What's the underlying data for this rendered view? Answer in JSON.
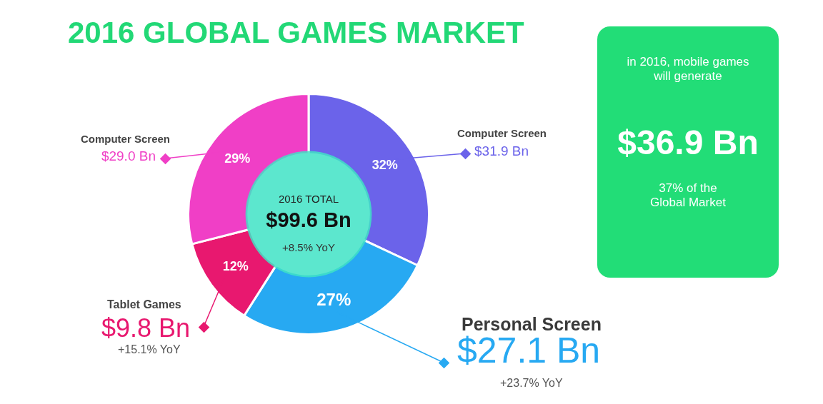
{
  "chart_data": {
    "type": "donut",
    "title": "2016 GLOBAL GAMES MARKET",
    "categories": [
      "Computer Screen",
      "Personal Screen",
      "Tablet Games",
      "Computer Screen"
    ],
    "values": [
      32,
      27,
      12,
      29
    ],
    "value_labels": [
      "32%",
      "27%",
      "12%",
      "29%"
    ],
    "colors": [
      "#6b63ea",
      "#27a9f2",
      "#e8186f",
      "#f03fc6"
    ],
    "legend": false,
    "annotations": [
      "$31.9 Bn",
      "$27.1 Bn",
      "+23.7% YoY",
      "$9.8 Bn",
      "+15.1% YoY",
      "$29.0 Bn",
      "2016 TOTAL",
      "$99.6 Bn",
      "+8.5% YoY",
      "in 2016, mobile games will generate",
      "$36.9 Bn",
      "37% of the Global Market"
    ]
  }
}
